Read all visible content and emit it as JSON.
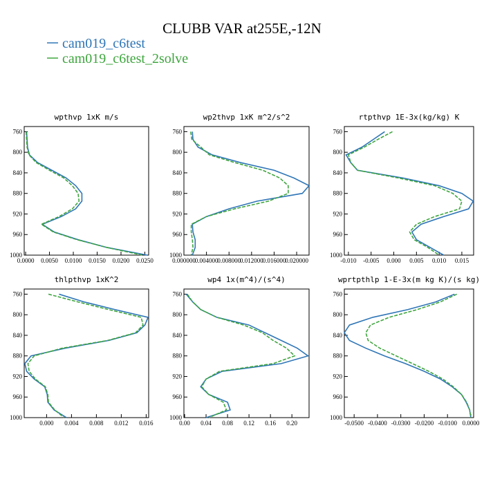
{
  "title": "CLUBB VAR at255E,-12N",
  "chart_data": [
    {
      "type": "line",
      "title": "wpthvp  1xK m/s",
      "y": [
        760,
        775,
        790,
        805,
        820,
        835,
        850,
        865,
        880,
        895,
        910,
        925,
        940,
        955,
        970,
        985,
        1000
      ],
      "series": [
        {
          "name": "cam019_c6test",
          "color": "#2e75b6",
          "dashed": false,
          "values": [
            0.0002,
            0.0003,
            0.0004,
            0.0008,
            0.0025,
            0.0055,
            0.0085,
            0.0105,
            0.0118,
            0.0118,
            0.0105,
            0.0075,
            0.0035,
            0.006,
            0.011,
            0.017,
            0.0255
          ]
        },
        {
          "name": "cam019_c6test_2solve",
          "color": "#3ea53e",
          "dashed": true,
          "values": [
            0.0001,
            0.0002,
            0.0003,
            0.0007,
            0.0022,
            0.005,
            0.008,
            0.0098,
            0.011,
            0.0112,
            0.0098,
            0.007,
            0.0033,
            0.0058,
            0.0108,
            0.017,
            0.0245
          ]
        }
      ],
      "xlim": [
        -0.0003,
        0.0258
      ],
      "xticks": [
        {
          "value": 0,
          "label": "0.0000"
        },
        {
          "value": 0.005,
          "label": "0.0050"
        },
        {
          "value": 0.01,
          "label": "0.0100"
        },
        {
          "value": 0.015,
          "label": "0.0150"
        },
        {
          "value": 0.02,
          "label": "0.0200"
        },
        {
          "value": 0.025,
          "label": "0.0250"
        }
      ],
      "ylim": [
        1000,
        750
      ],
      "yticks": [
        760,
        800,
        840,
        880,
        920,
        960,
        1000
      ]
    },
    {
      "type": "line",
      "title": "wp2thvp  1xK m^2/s^2",
      "y": [
        760,
        775,
        790,
        805,
        820,
        835,
        850,
        865,
        880,
        895,
        910,
        925,
        940,
        955,
        970,
        985,
        1000
      ],
      "series": [
        {
          "name": "cam019_c6test",
          "color": "#2e75b6",
          "dashed": false,
          "values": [
            0.0015,
            0.0016,
            0.0025,
            0.005,
            0.01,
            0.016,
            0.0195,
            0.0222,
            0.021,
            0.013,
            0.008,
            0.004,
            0.0015,
            0.0016,
            0.002,
            0.002,
            0.0015
          ]
        },
        {
          "name": "cam019_c6test_2solve",
          "color": "#3ea53e",
          "dashed": true,
          "values": [
            0.0012,
            0.0014,
            0.003,
            0.0045,
            0.009,
            0.014,
            0.017,
            0.0185,
            0.0185,
            0.015,
            0.009,
            0.004,
            0.0013,
            0.0013,
            0.0015,
            0.0016,
            0.0013
          ]
        }
      ],
      "xlim": [
        0,
        0.0222
      ],
      "xticks": [
        {
          "value": 0,
          "label": "0.000000"
        },
        {
          "value": 0.004,
          "label": "0.004000"
        },
        {
          "value": 0.008,
          "label": "0.008000"
        },
        {
          "value": 0.012,
          "label": "0.012000"
        },
        {
          "value": 0.016,
          "label": "0.016000"
        },
        {
          "value": 0.02,
          "label": "0.020000"
        }
      ],
      "ylim": [
        1000,
        750
      ],
      "yticks": [
        760,
        800,
        840,
        880,
        920,
        960,
        1000
      ]
    },
    {
      "type": "line",
      "title": "rtpthvp  1E-3x(kg/kg) K",
      "y": [
        760,
        775,
        790,
        805,
        820,
        835,
        850,
        865,
        880,
        895,
        910,
        925,
        940,
        955,
        970,
        985,
        1000
      ],
      "series": [
        {
          "name": "cam019_c6test",
          "color": "#2e75b6",
          "dashed": false,
          "values": [
            -0.002,
            -0.0045,
            -0.007,
            -0.0105,
            -0.0095,
            -0.008,
            0.002,
            0.01,
            0.015,
            0.0175,
            0.0165,
            0.011,
            0.006,
            0.004,
            0.005,
            0.008,
            0.011
          ]
        },
        {
          "name": "cam019_c6test_2solve",
          "color": "#3ea53e",
          "dashed": true,
          "values": [
            -0.0003,
            -0.0035,
            -0.0065,
            -0.01,
            -0.0095,
            -0.008,
            0.001,
            0.009,
            0.013,
            0.015,
            0.0145,
            0.009,
            0.005,
            0.0035,
            0.0045,
            0.0075,
            0.01
          ]
        }
      ],
      "xlim": [
        -0.0109,
        0.0176
      ],
      "xticks": [
        {
          "value": -0.01,
          "label": "-0.010"
        },
        {
          "value": -0.005,
          "label": "-0.005"
        },
        {
          "value": 0,
          "label": "0.000"
        },
        {
          "value": 0.005,
          "label": "0.005"
        },
        {
          "value": 0.01,
          "label": "0.010"
        },
        {
          "value": 0.015,
          "label": "0.015"
        }
      ],
      "ylim": [
        1000,
        750
      ],
      "yticks": [
        760,
        800,
        840,
        880,
        920,
        960,
        1000
      ]
    },
    {
      "type": "line",
      "title": "thlpthvp  1xK^2",
      "y": [
        760,
        775,
        790,
        805,
        820,
        835,
        850,
        865,
        880,
        895,
        910,
        925,
        940,
        955,
        970,
        985,
        1000
      ],
      "series": [
        {
          "name": "cam019_c6test",
          "color": "#2e75b6",
          "dashed": false,
          "values": [
            0.002,
            0.006,
            0.011,
            0.0163,
            0.0158,
            0.0145,
            0.01,
            0.003,
            -0.0025,
            -0.0035,
            -0.0032,
            -0.002,
            -0.0003,
            0.0001,
            0.0002,
            0.0012,
            0.0032
          ]
        },
        {
          "name": "cam019_c6test_2solve",
          "color": "#3ea53e",
          "dashed": true,
          "values": [
            0.0003,
            0.005,
            0.01,
            0.0152,
            0.0155,
            0.0143,
            0.0098,
            0.0025,
            -0.002,
            -0.003,
            -0.0028,
            -0.0018,
            -0.0002,
            0.0002,
            0.0003,
            0.0013,
            0.0028
          ]
        }
      ],
      "xlim": [
        -0.0036,
        0.0164
      ],
      "xticks": [
        {
          "value": 0,
          "label": "0.000"
        },
        {
          "value": 0.004,
          "label": "0.004"
        },
        {
          "value": 0.008,
          "label": "0.008"
        },
        {
          "value": 0.012,
          "label": "0.012"
        },
        {
          "value": 0.016,
          "label": "0.016"
        }
      ],
      "ylim": [
        1000,
        750
      ],
      "yticks": [
        760,
        800,
        840,
        880,
        920,
        960,
        1000
      ]
    },
    {
      "type": "line",
      "title": "wp4  1x(m^4)/(s^4)",
      "y": [
        760,
        775,
        790,
        805,
        820,
        835,
        850,
        865,
        880,
        895,
        910,
        925,
        940,
        955,
        970,
        985,
        1000
      ],
      "series": [
        {
          "name": "cam019_c6test",
          "color": "#2e75b6",
          "dashed": false,
          "values": [
            0.003,
            0.015,
            0.03,
            0.06,
            0.12,
            0.15,
            0.18,
            0.21,
            0.23,
            0.18,
            0.07,
            0.04,
            0.03,
            0.045,
            0.08,
            0.085,
            0.04
          ]
        },
        {
          "name": "cam019_c6test_2solve",
          "color": "#3ea53e",
          "dashed": true,
          "values": [
            0.005,
            0.015,
            0.03,
            0.06,
            0.11,
            0.145,
            0.165,
            0.19,
            0.205,
            0.165,
            0.065,
            0.04,
            0.032,
            0.045,
            0.072,
            0.078,
            0.045
          ]
        }
      ],
      "xlim": [
        -0.0013,
        0.232
      ],
      "xticks": [
        {
          "value": 0,
          "label": "0.00"
        },
        {
          "value": 0.04,
          "label": "0.04"
        },
        {
          "value": 0.08,
          "label": "0.08"
        },
        {
          "value": 0.12,
          "label": "0.12"
        },
        {
          "value": 0.16,
          "label": "0.16"
        },
        {
          "value": 0.2,
          "label": "0.20"
        }
      ],
      "ylim": [
        1000,
        750
      ],
      "yticks": [
        760,
        800,
        840,
        880,
        920,
        960,
        1000
      ]
    },
    {
      "type": "line",
      "title": "wprtpthlp  1-E-3x(m kg K)/(s kg)",
      "y": [
        760,
        775,
        790,
        805,
        820,
        835,
        850,
        865,
        880,
        895,
        910,
        925,
        940,
        955,
        970,
        985,
        1000
      ],
      "series": [
        {
          "name": "cam019_c6test",
          "color": "#2e75b6",
          "dashed": false,
          "values": [
            -0.007,
            -0.015,
            -0.027,
            -0.042,
            -0.052,
            -0.0542,
            -0.052,
            -0.045,
            -0.037,
            -0.028,
            -0.02,
            -0.013,
            -0.008,
            -0.004,
            -0.002,
            -0.0005,
            0
          ]
        },
        {
          "name": "cam019_c6test_2solve",
          "color": "#3ea53e",
          "dashed": true,
          "values": [
            -0.006,
            -0.013,
            -0.023,
            -0.035,
            -0.043,
            -0.045,
            -0.044,
            -0.039,
            -0.032,
            -0.025,
            -0.018,
            -0.012,
            -0.0075,
            -0.004,
            -0.0018,
            -0.0005,
            0
          ]
        }
      ],
      "xlim": [
        -0.0542,
        0.0012
      ],
      "xticks": [
        {
          "value": -0.05,
          "label": "-0.0500"
        },
        {
          "value": -0.04,
          "label": "-0.0400"
        },
        {
          "value": -0.03,
          "label": "-0.0300"
        },
        {
          "value": -0.02,
          "label": "-0.0200"
        },
        {
          "value": -0.01,
          "label": "-0.0100"
        },
        {
          "value": 0,
          "label": "0.0000"
        }
      ],
      "ylim": [
        1000,
        750
      ],
      "yticks": [
        760,
        800,
        840,
        880,
        920,
        960,
        1000
      ]
    }
  ]
}
